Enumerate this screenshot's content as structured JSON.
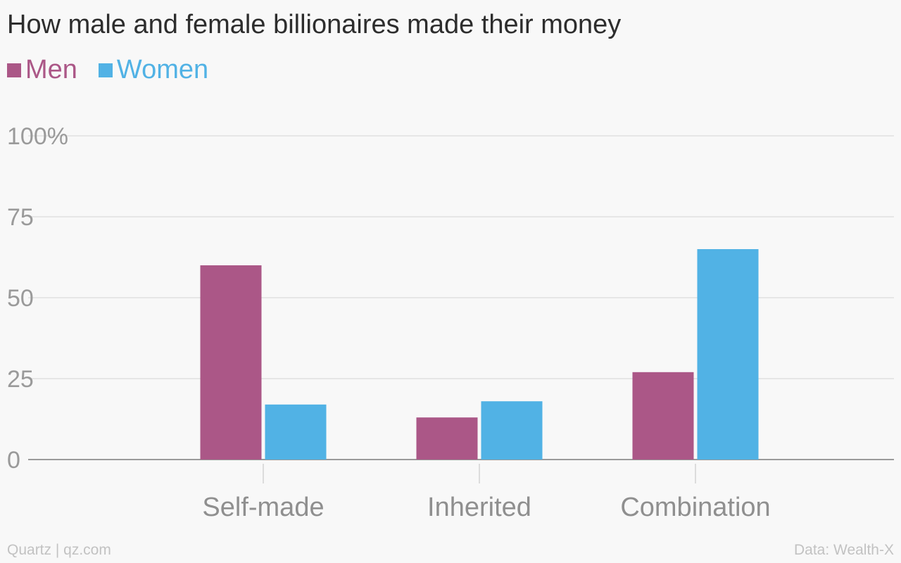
{
  "chart_data": {
    "type": "bar",
    "title": "How male and female billionaires made their money",
    "categories": [
      "Self-made",
      "Inherited",
      "Combination"
    ],
    "series": [
      {
        "name": "Men",
        "values": [
          60,
          13,
          27
        ],
        "color": "#ab5787"
      },
      {
        "name": "Women",
        "values": [
          17,
          18,
          65
        ],
        "color": "#51b2e5"
      }
    ],
    "ylim": [
      0,
      100
    ],
    "yticks": [
      0,
      25,
      50,
      75,
      100
    ],
    "ytick_labels": [
      "0",
      "25",
      "50",
      "75",
      "100%"
    ],
    "xlabel": "",
    "ylabel": "",
    "grid": true,
    "legend_position": "top-left"
  },
  "footer": {
    "source_left": "Quartz | qz.com",
    "source_right": "Data: Wealth-X"
  }
}
